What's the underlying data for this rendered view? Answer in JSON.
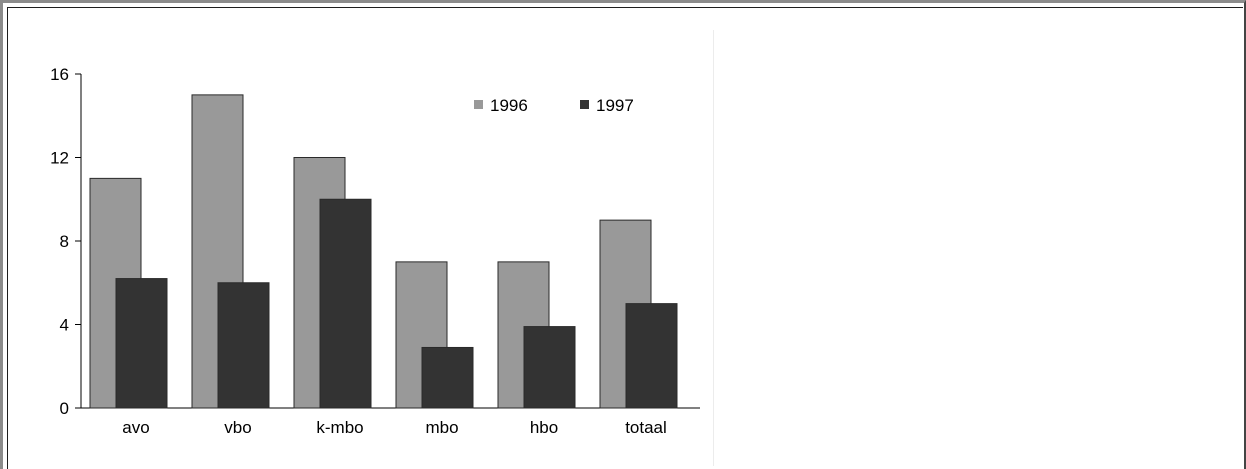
{
  "chart_data": {
    "type": "bar",
    "categories": [
      "avo",
      "vbo",
      "k-mbo",
      "mbo",
      "hbo",
      "totaal"
    ],
    "series": [
      {
        "name": "1996",
        "values": [
          11,
          15,
          12,
          7,
          7,
          9
        ],
        "color": "#999999"
      },
      {
        "name": "1997",
        "values": [
          6.2,
          6,
          10,
          2.9,
          3.9,
          5
        ],
        "color": "#333333"
      }
    ],
    "yticks": [
      0,
      4,
      8,
      12,
      16
    ],
    "ylim": [
      0,
      16
    ],
    "grid": false,
    "legend": "top-right"
  }
}
